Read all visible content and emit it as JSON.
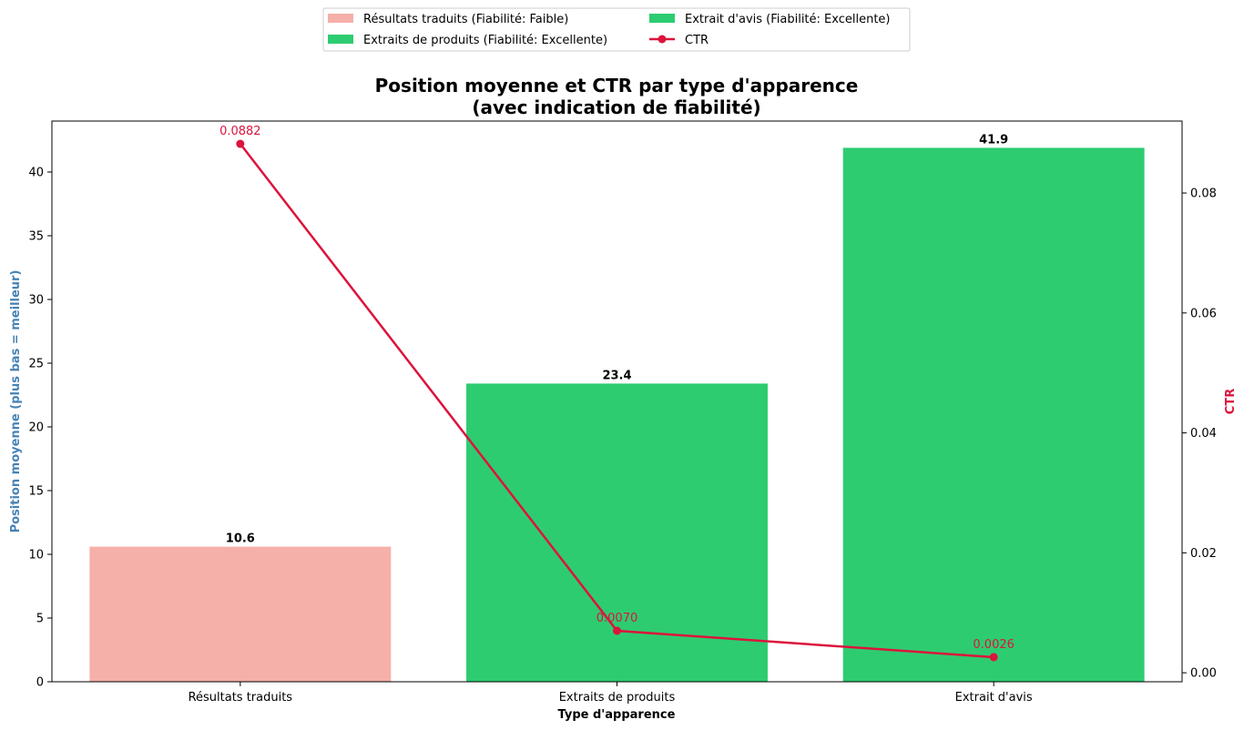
{
  "chart_data": {
    "type": "bar",
    "title_line1": "Position moyenne et CTR par type d'apparence",
    "title_line2": "(avec indication de fiabilité)",
    "xlabel": "Type d'apparence",
    "ylabel": "Position moyenne (plus bas = meilleur)",
    "ylabel_right": "CTR",
    "categories": [
      "Résultats traduits",
      "Extraits de produits",
      "Extrait d'avis"
    ],
    "bars": {
      "values": [
        10.6,
        23.4,
        41.9
      ],
      "labels": [
        "10.6",
        "23.4",
        "41.9"
      ],
      "colors": [
        "#f5b0a9",
        "#2ecc71",
        "#2ecc71"
      ]
    },
    "ctr": {
      "name": "CTR",
      "values": [
        0.0882,
        0.007,
        0.0026
      ],
      "labels": [
        "0.0882",
        "0.0070",
        "0.0026"
      ],
      "color": "#dc143c"
    },
    "ylim_left": [
      0,
      44
    ],
    "yticks_left": [
      0,
      5,
      10,
      15,
      20,
      25,
      30,
      35,
      40
    ],
    "ylim_right": [
      -0.0015,
      0.092
    ],
    "yticks_right": [
      "0.00",
      "0.02",
      "0.04",
      "0.06",
      "0.08"
    ],
    "yticks_right_values": [
      0,
      0.02,
      0.04,
      0.06,
      0.08
    ],
    "ylabel_color": "#4682b4",
    "ylabel_right_color": "#dc143c",
    "grid": false,
    "legend_placement": "top-center",
    "legend": [
      {
        "label": "Résultats traduits (Fiabilité: Faible)",
        "kind": "patch",
        "color": "#f5b0a9"
      },
      {
        "label": "Extraits de produits (Fiabilité: Excellente)",
        "kind": "patch",
        "color": "#2ecc71"
      },
      {
        "label": "Extrait d'avis (Fiabilité: Excellente)",
        "kind": "patch",
        "color": "#2ecc71"
      },
      {
        "label": "CTR",
        "kind": "line",
        "color": "#dc143c"
      }
    ]
  }
}
